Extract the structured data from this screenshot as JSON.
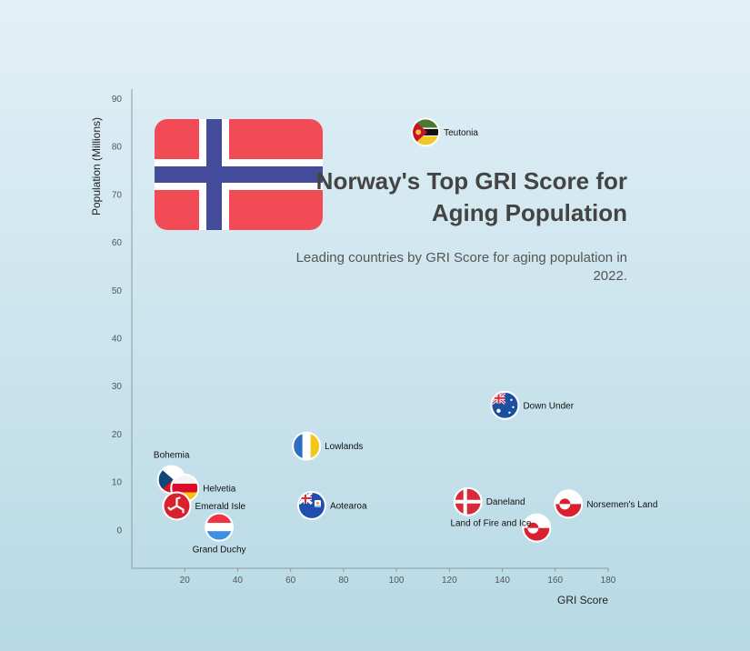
{
  "title": "Norway's Top GRI Score for Aging Population",
  "subtitle": "Leading countries by GRI Score for aging population in 2022.",
  "featured_flag": "norway-flag",
  "chart_data": {
    "type": "scatter",
    "xlabel": "GRI Score",
    "ylabel": "Population (Millions)",
    "xlim": [
      0,
      180
    ],
    "ylim": [
      -8,
      92
    ],
    "x_ticks": [
      20,
      40,
      60,
      80,
      100,
      120,
      140,
      160,
      180
    ],
    "y_ticks": [
      0,
      10,
      20,
      30,
      40,
      50,
      60,
      70,
      80,
      90
    ],
    "grid": false,
    "legend": "none",
    "points": [
      {
        "label": "Teutonia",
        "x": 111,
        "y": 83,
        "flag": "mozambique-flag",
        "label_pos": "right"
      },
      {
        "label": "Down Under",
        "x": 141,
        "y": 26,
        "flag": "australia-flag",
        "label_pos": "right"
      },
      {
        "label": "Lowlands",
        "x": 66,
        "y": 17.5,
        "flag": "canary-flag",
        "label_pos": "right"
      },
      {
        "label": "Bohemia",
        "x": 15,
        "y": 10.5,
        "flag": "czech-flag",
        "label_pos": "above"
      },
      {
        "label": "Helvetia",
        "x": 20,
        "y": 8.7,
        "flag": "poland-germany-flag",
        "label_pos": "right"
      },
      {
        "label": "Emerald Isle",
        "x": 17,
        "y": 5,
        "flag": "isle-of-man-flag",
        "label_pos": "right"
      },
      {
        "label": "Grand Duchy",
        "x": 33,
        "y": 0.6,
        "flag": "luxembourg-flag",
        "label_pos": "below"
      },
      {
        "label": "Aotearoa",
        "x": 68,
        "y": 5.1,
        "flag": "anguilla-flag",
        "label_pos": "right"
      },
      {
        "label": "Daneland",
        "x": 127,
        "y": 5.9,
        "flag": "denmark-flag",
        "label_pos": "right"
      },
      {
        "label": "Norsemen's Land",
        "x": 165,
        "y": 5.4,
        "flag": "greenland-flag",
        "label_pos": "right"
      },
      {
        "label": "Land of Fire and Ice",
        "x": 153,
        "y": 0.4,
        "flag": "greenland-flag",
        "label_pos": "left"
      }
    ]
  }
}
